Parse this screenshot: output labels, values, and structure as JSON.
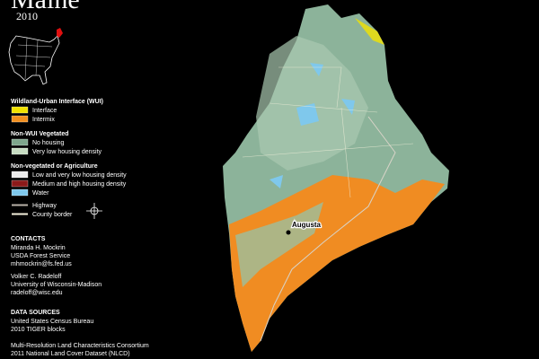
{
  "header": {
    "title": "Maine",
    "year": "2010"
  },
  "legend": {
    "groups": [
      {
        "title": "Wildland-Urban Interface (WUI)",
        "items": [
          {
            "label": "Interface",
            "color": "#f2e200"
          },
          {
            "label": "Intermix",
            "color": "#f3901f"
          }
        ]
      },
      {
        "title": "Non-WUI Vegetated",
        "items": [
          {
            "label": "No housing",
            "color": "#7ea68c"
          },
          {
            "label": "Very low housing density",
            "color": "#c7dcc2"
          }
        ]
      },
      {
        "title": "Non-vegetated or Agriculture",
        "items": [
          {
            "label": "Low and very low housing density",
            "color": "#ececec"
          },
          {
            "label": "Medium and high housing density",
            "color": "#8c1a1a"
          },
          {
            "label": "Water",
            "color": "#7fc8ec"
          }
        ]
      }
    ],
    "lines": [
      {
        "label": "Highway",
        "color": "#b9b2a8"
      },
      {
        "label": "County border",
        "color": "#f4f1dc"
      }
    ]
  },
  "contacts": {
    "title": "CONTACTS",
    "people": [
      [
        "Miranda H. Mockrin",
        "USDA Forest Service",
        "mhmockrin@fs.fed.us"
      ],
      [
        "Volker C. Radeloff",
        "University of Wisconsin-Madison",
        "radeloff@wisc.edu"
      ]
    ]
  },
  "sources": {
    "title": "DATA SOURCES",
    "entries": [
      [
        "United States Census Bureau",
        "2010 TIGER blocks"
      ],
      [
        "Multi-Resolution Land Characteristics Consortium",
        "2011 National Land Cover Dataset (NLCD)"
      ]
    ]
  },
  "map": {
    "city": "Augusta"
  }
}
